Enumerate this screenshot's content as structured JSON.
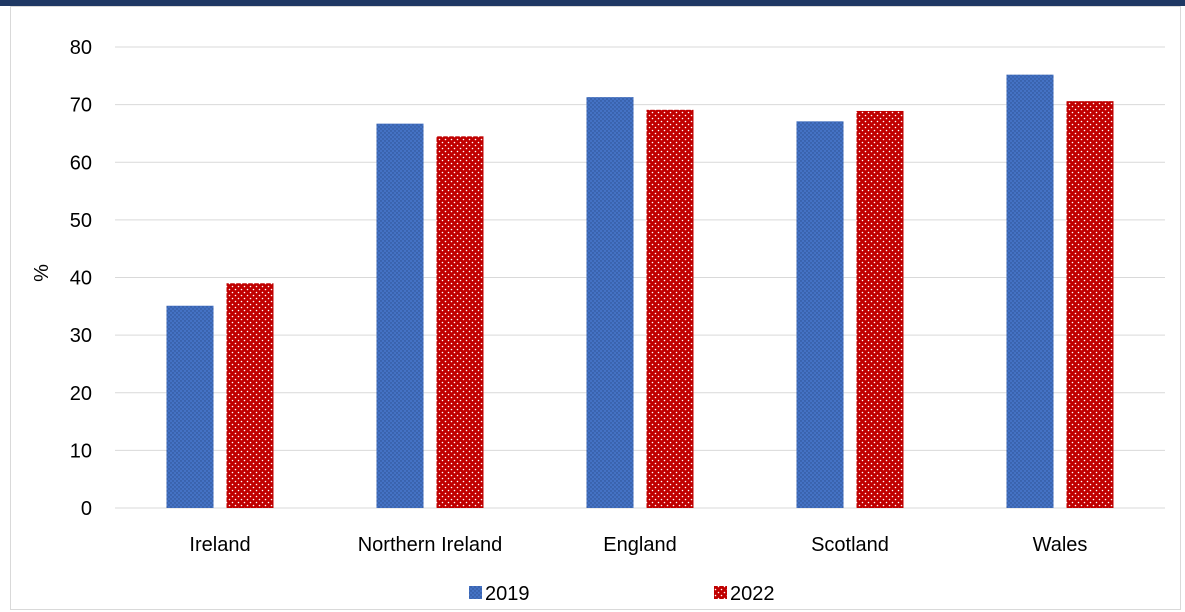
{
  "chart_data": {
    "type": "bar",
    "categories": [
      "Ireland",
      "Northern Ireland",
      "England",
      "Scotland",
      "Wales"
    ],
    "series": [
      {
        "name": "2019",
        "values": [
          35.1,
          66.7,
          71.3,
          67.1,
          75.2
        ],
        "color": "#4472c4"
      },
      {
        "name": "2022",
        "values": [
          39.0,
          64.5,
          69.1,
          68.9,
          70.6
        ],
        "color": "#c00000"
      }
    ],
    "title": "",
    "xlabel": "",
    "ylabel": "%",
    "ylim": [
      0,
      80
    ],
    "yticks": [
      "0",
      "10",
      "20",
      "30",
      "40",
      "50",
      "60",
      "70",
      "80"
    ],
    "grid": true,
    "legend_position": "bottom"
  },
  "colors": {
    "top_rule": "#1f3864",
    "gridline": "#d9d9d9",
    "frame": "#d9d9d9"
  }
}
